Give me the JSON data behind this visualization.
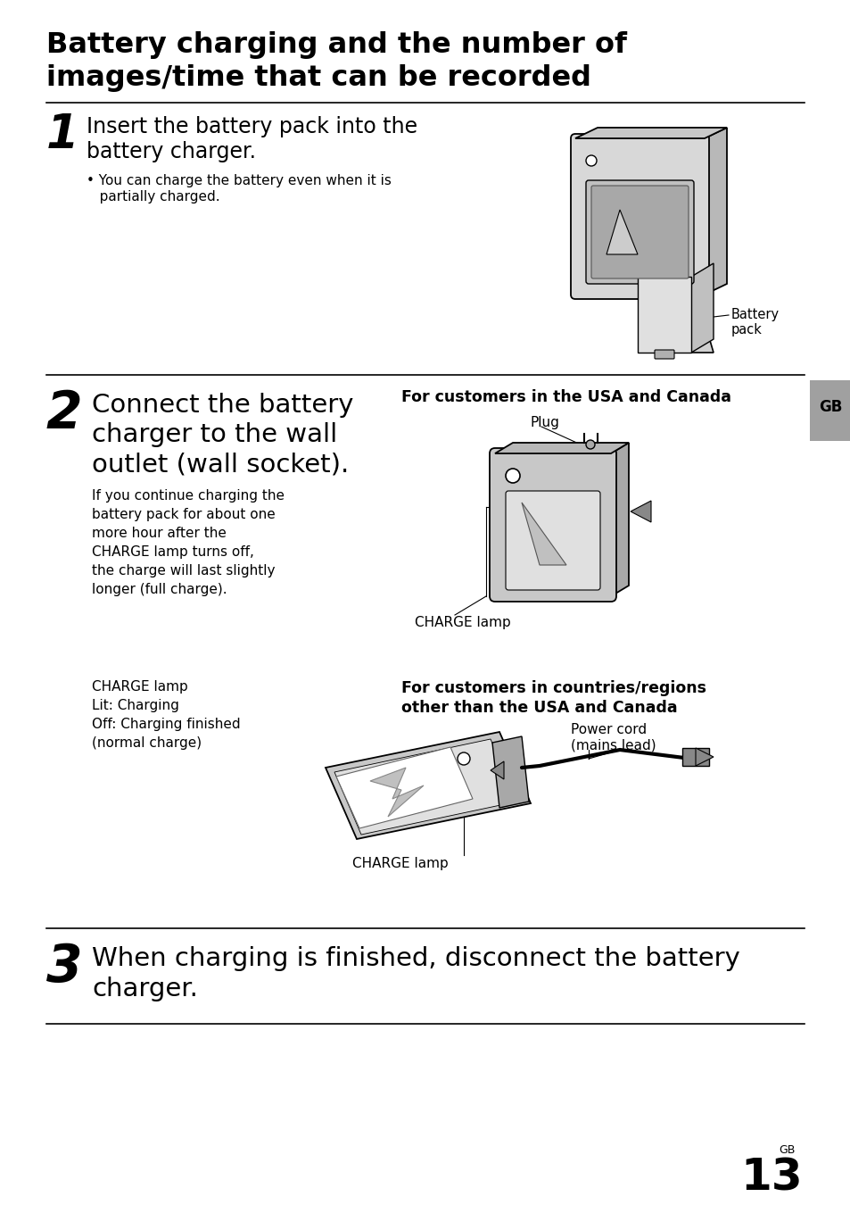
{
  "bg_color": "#ffffff",
  "title_line1": "Battery charging and the number of",
  "title_line2": "images/time that can be recorded",
  "step1_heading1": "Insert the battery pack into the",
  "step1_heading2": "battery charger.",
  "step1_bullet1": "• You can charge the battery even when it is",
  "step1_bullet2": "   partially charged.",
  "step2_heading1": "Connect the battery",
  "step2_heading2": "charger to the wall",
  "step2_heading3": "outlet (wall socket).",
  "step2_para": "If you continue charging the\nbattery pack for about one\nmore hour after the\nCHARGE lamp turns off,\nthe charge will last slightly\nlonger (full charge).",
  "step2_charge_info": "CHARGE lamp\nLit: Charging\nOff: Charging finished\n(normal charge)",
  "usa_canada_label": "For customers in the USA and Canada",
  "plug_label": "Plug",
  "charge_lamp_label1": "CHARGE lamp",
  "other_countries_label1": "For customers in countries/regions",
  "other_countries_label2": "other than the USA and Canada",
  "power_cord_label": "Power cord\n(mains lead)",
  "charge_lamp_label2": "CHARGE lamp",
  "battery_pack_label": "Battery\npack",
  "step3_heading1": "When charging is finished, disconnect the battery",
  "step3_heading2": "charger.",
  "gb_label": "GB",
  "page_number": "13",
  "page_gb_label": "GB"
}
